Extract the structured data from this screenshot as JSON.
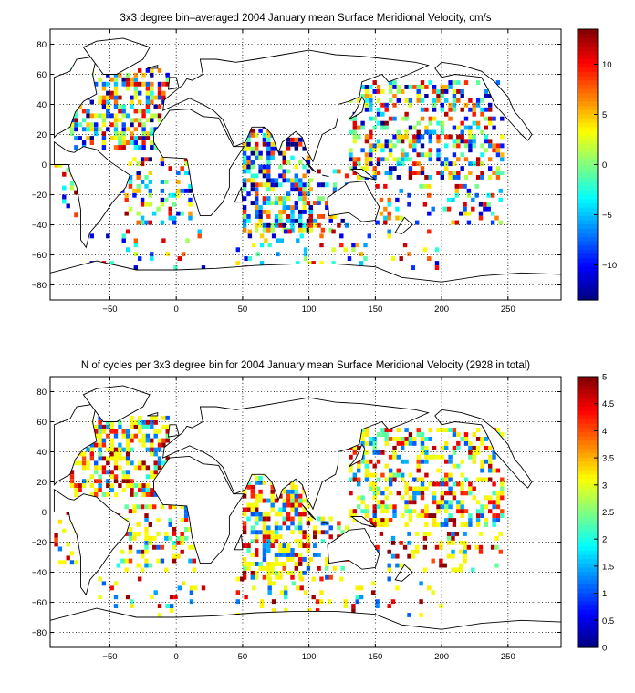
{
  "chart_data": [
    {
      "type": "heatmap",
      "title": "3x3 degree bin–averaged 2004 January mean Surface Meridional Velocity, cm/s",
      "xlabel": "",
      "ylabel": "",
      "xlim": [
        -95,
        290
      ],
      "ylim": [
        -90,
        90
      ],
      "xticks": [
        -50,
        0,
        50,
        100,
        150,
        200,
        250
      ],
      "yticks": [
        -80,
        -60,
        -40,
        -20,
        0,
        20,
        40,
        60,
        80
      ],
      "grid": true,
      "bin_size_deg": 3,
      "colormap": "jet",
      "colorbar": {
        "range": [
          -13.5,
          13.5
        ],
        "ticks": [
          -10,
          -5,
          0,
          5,
          10
        ]
      },
      "regions": [
        {
          "lon": [
            -80,
            -5
          ],
          "lat": [
            10,
            62
          ],
          "density": 0.55,
          "bias": 0.0
        },
        {
          "lon": [
            -45,
            15
          ],
          "lat": [
            -40,
            5
          ],
          "density": 0.25,
          "bias": 0.0
        },
        {
          "lon": [
            -92,
            -75
          ],
          "lat": [
            -35,
            5
          ],
          "density": 0.25,
          "bias": 0.0
        },
        {
          "lon": [
            50,
            100
          ],
          "lat": [
            -45,
            25
          ],
          "density": 0.55,
          "bias": -0.3
        },
        {
          "lon": [
            100,
            130
          ],
          "lat": [
            -45,
            -5
          ],
          "density": 0.3,
          "bias": 0.0
        },
        {
          "lon": [
            130,
            245
          ],
          "lat": [
            -10,
            55
          ],
          "density": 0.45,
          "bias": 0.0
        },
        {
          "lon": [
            150,
            245
          ],
          "lat": [
            -40,
            -15
          ],
          "density": 0.22,
          "bias": 0.0
        },
        {
          "lon": [
            -65,
            20
          ],
          "lat": [
            -70,
            -45
          ],
          "density": 0.12,
          "bias": 0.0
        },
        {
          "lon": [
            45,
            200
          ],
          "lat": [
            -70,
            -45
          ],
          "density": 0.12,
          "bias": 0.0
        }
      ]
    },
    {
      "type": "heatmap",
      "title": "N of cycles per 3x3 degree bin for 2004 January mean Surface Meridional Velocity (2928 in total)",
      "xlabel": "",
      "ylabel": "",
      "xlim": [
        -95,
        290
      ],
      "ylim": [
        -90,
        90
      ],
      "xticks": [
        -50,
        0,
        50,
        100,
        150,
        200,
        250
      ],
      "yticks": [
        -80,
        -60,
        -40,
        -20,
        0,
        20,
        40,
        60,
        80
      ],
      "grid": true,
      "bin_size_deg": 3,
      "colormap": "jet",
      "total_cycles": 2928,
      "colorbar": {
        "range": [
          0,
          5
        ],
        "ticks": [
          0,
          0.5,
          1,
          1.5,
          2,
          2.5,
          3,
          3.5,
          4,
          4.5,
          5
        ]
      },
      "regions": [
        {
          "lon": [
            -80,
            -5
          ],
          "lat": [
            10,
            62
          ],
          "density": 0.55,
          "bias": 0.0
        },
        {
          "lon": [
            -45,
            15
          ],
          "lat": [
            -40,
            5
          ],
          "density": 0.25,
          "bias": 0.0
        },
        {
          "lon": [
            -92,
            -75
          ],
          "lat": [
            -35,
            5
          ],
          "density": 0.25,
          "bias": 0.0
        },
        {
          "lon": [
            50,
            100
          ],
          "lat": [
            -45,
            25
          ],
          "density": 0.55,
          "bias": 0.0
        },
        {
          "lon": [
            100,
            130
          ],
          "lat": [
            -45,
            -5
          ],
          "density": 0.3,
          "bias": 0.0
        },
        {
          "lon": [
            130,
            245
          ],
          "lat": [
            -10,
            55
          ],
          "density": 0.45,
          "bias": 0.0
        },
        {
          "lon": [
            150,
            245
          ],
          "lat": [
            -40,
            -15
          ],
          "density": 0.22,
          "bias": 0.0
        },
        {
          "lon": [
            -65,
            20
          ],
          "lat": [
            -70,
            -45
          ],
          "density": 0.12,
          "bias": 0.0
        },
        {
          "lon": [
            45,
            200
          ],
          "lat": [
            -70,
            -45
          ],
          "density": 0.12,
          "bias": 0.0
        }
      ]
    }
  ]
}
